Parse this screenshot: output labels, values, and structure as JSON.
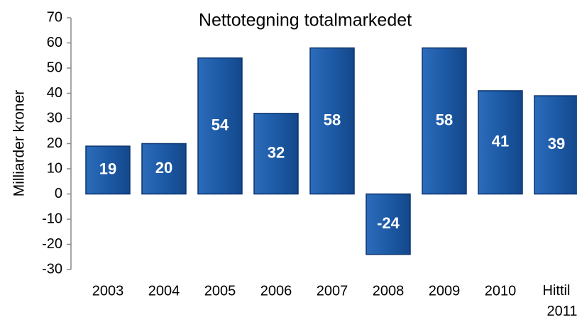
{
  "chart_data": {
    "type": "bar",
    "title": "Nettotegning totalmarkedet",
    "y_label": "Milliarder kroner",
    "categories": [
      "2003",
      "2004",
      "2005",
      "2006",
      "2007",
      "2008",
      "2009",
      "2010",
      "Hittil 2011"
    ],
    "values": [
      19,
      20,
      54,
      32,
      58,
      -24,
      58,
      41,
      39
    ],
    "color": "#1f5ca8",
    "ylim": [
      -30,
      70
    ],
    "yticks": [
      -30,
      -20,
      -10,
      0,
      10,
      20,
      30,
      40,
      50,
      60,
      70
    ],
    "grid": false
  }
}
